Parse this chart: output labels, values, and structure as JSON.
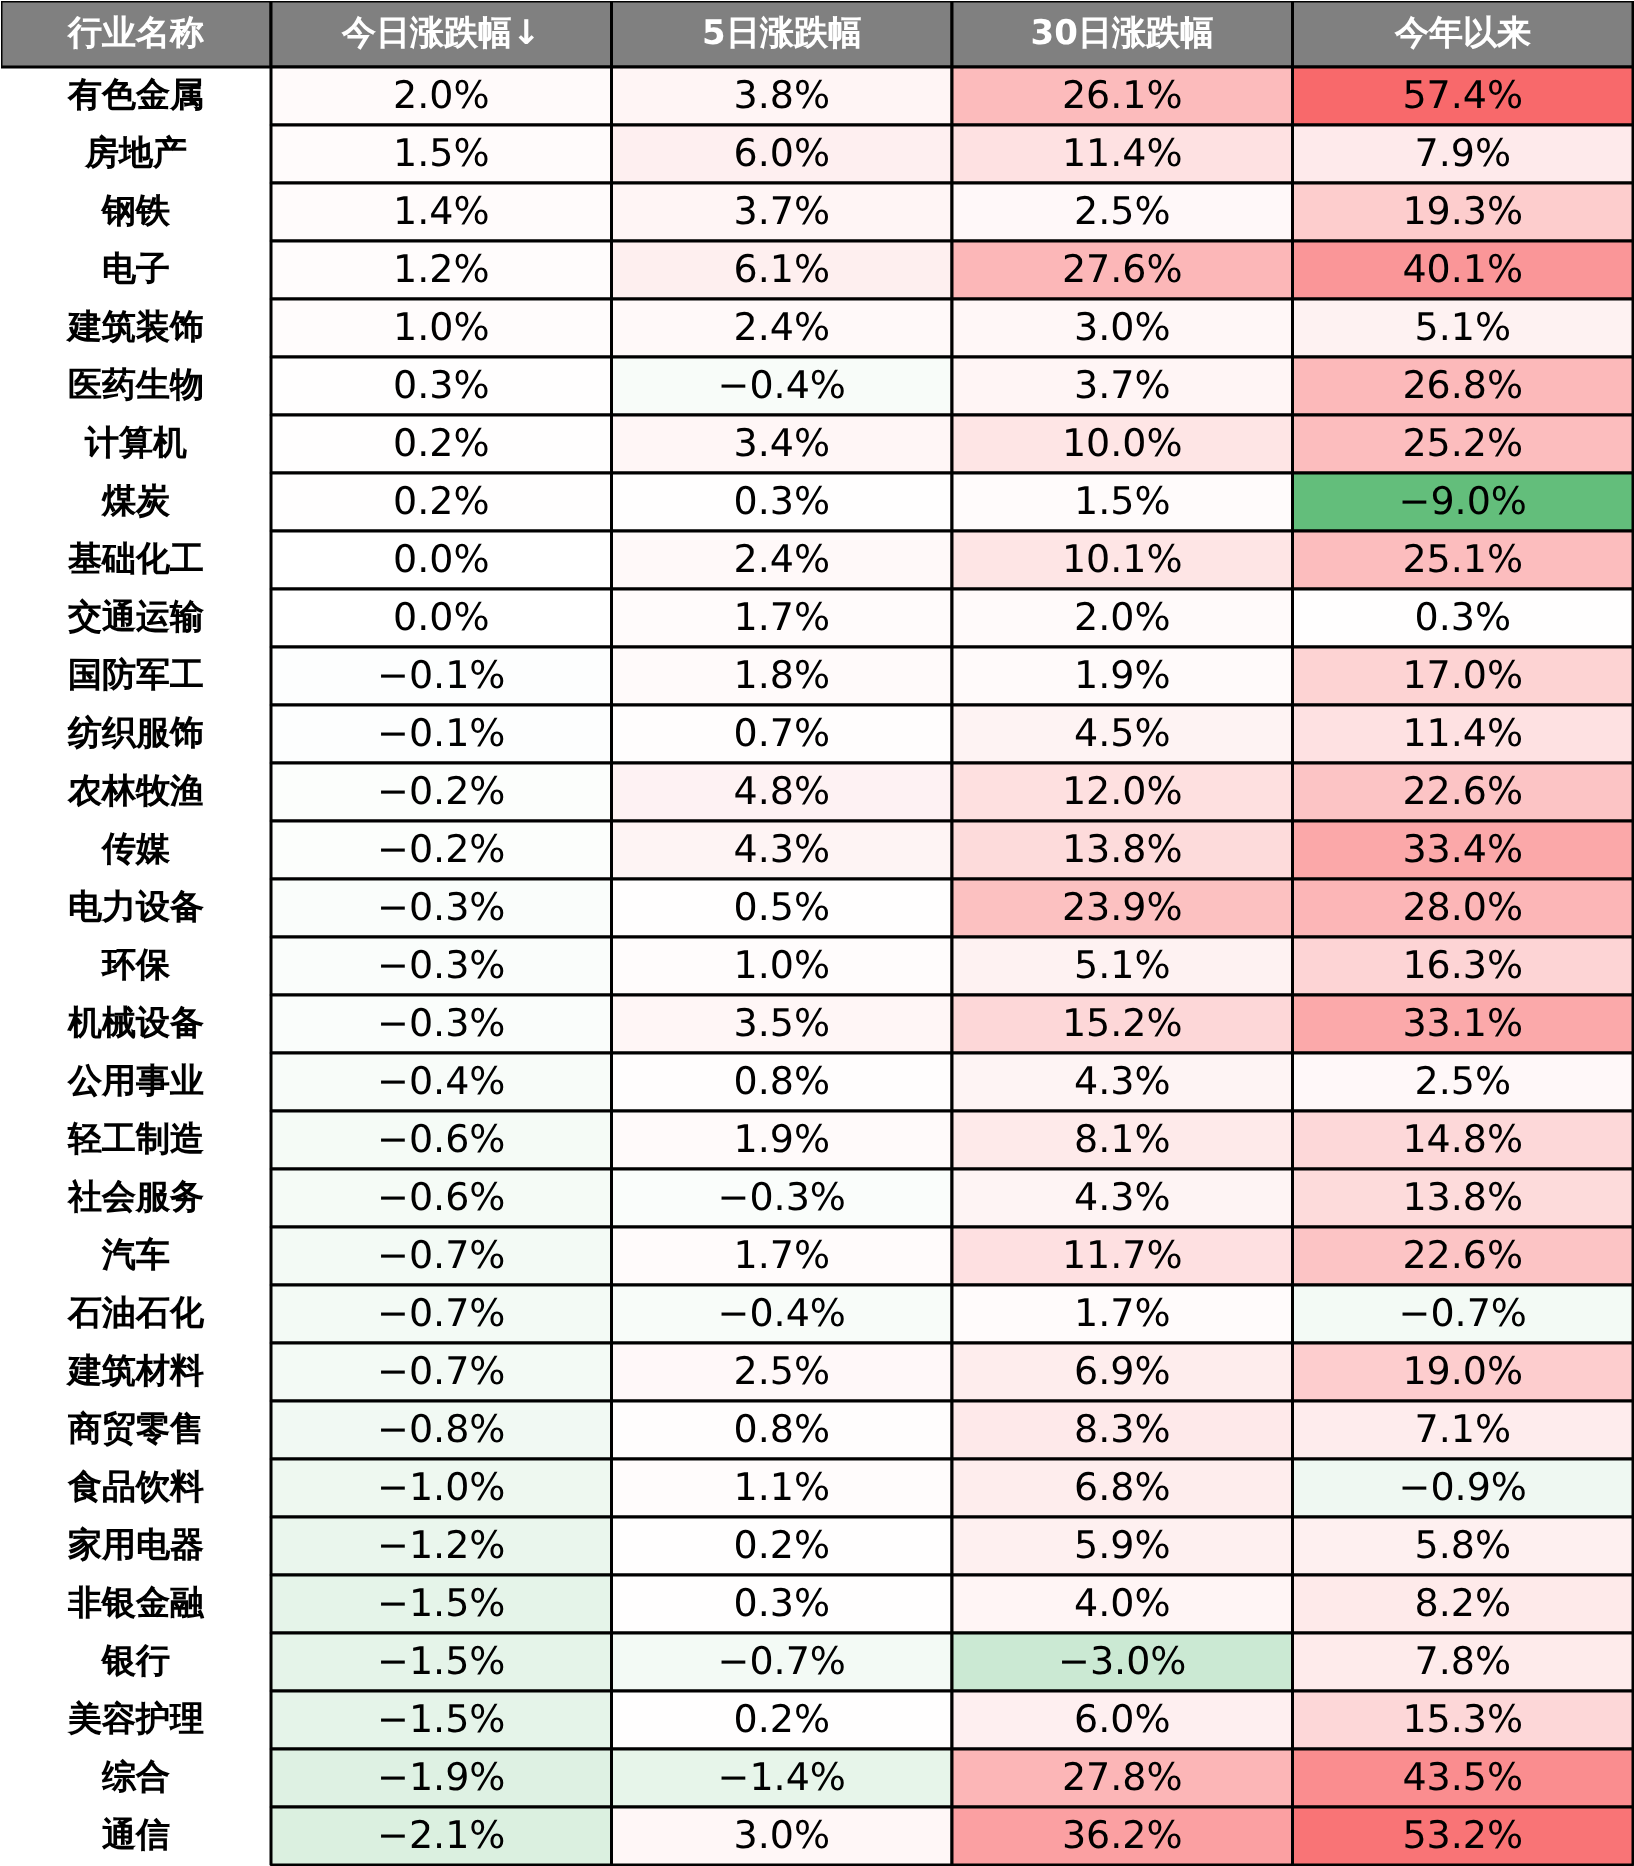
{
  "chart_data": {
    "type": "heatmap",
    "ylabel": "行业名称",
    "data_labels": true,
    "categories": [
      "今日涨跌幅↓",
      "5日涨跌幅",
      "30日涨跌幅",
      "今年以来"
    ],
    "y_categories": [
      "有色金属",
      "房地产",
      "钢铁",
      "电子",
      "建筑装饰",
      "医药生物",
      "计算机",
      "煤炭",
      "基础化工",
      "交通运输",
      "国防军工",
      "纺织服饰",
      "农林牧渔",
      "传媒",
      "电力设备",
      "环保",
      "机械设备",
      "公用事业",
      "轻工制造",
      "社会服务",
      "汽车",
      "石油石化",
      "建筑材料",
      "商贸零售",
      "食品饮料",
      "家用电器",
      "非银金融",
      "银行",
      "美容护理",
      "综合",
      "通信"
    ],
    "cells": [
      [
        2.0,
        3.8,
        26.1,
        57.4
      ],
      [
        1.5,
        6.0,
        11.4,
        7.9
      ],
      [
        1.4,
        3.7,
        2.5,
        19.3
      ],
      [
        1.2,
        6.1,
        27.6,
        40.1
      ],
      [
        1.0,
        2.4,
        3.0,
        5.1
      ],
      [
        0.3,
        -0.4,
        3.7,
        26.8
      ],
      [
        0.2,
        3.4,
        10.0,
        25.2
      ],
      [
        0.2,
        0.3,
        1.5,
        -9.0
      ],
      [
        0.0,
        2.4,
        10.1,
        25.1
      ],
      [
        0.0,
        1.7,
        2.0,
        0.3
      ],
      [
        -0.1,
        1.8,
        1.9,
        17.0
      ],
      [
        -0.1,
        0.7,
        4.5,
        11.4
      ],
      [
        -0.2,
        4.8,
        12.0,
        22.6
      ],
      [
        -0.2,
        4.3,
        13.8,
        33.4
      ],
      [
        -0.3,
        0.5,
        23.9,
        28.0
      ],
      [
        -0.3,
        1.0,
        5.1,
        16.3
      ],
      [
        -0.3,
        3.5,
        15.2,
        33.1
      ],
      [
        -0.4,
        0.8,
        4.3,
        2.5
      ],
      [
        -0.6,
        1.9,
        8.1,
        14.8
      ],
      [
        -0.6,
        -0.3,
        4.3,
        13.8
      ],
      [
        -0.7,
        1.7,
        11.7,
        22.6
      ],
      [
        -0.7,
        -0.4,
        1.7,
        -0.7
      ],
      [
        -0.7,
        2.5,
        6.9,
        19.0
      ],
      [
        -0.8,
        0.8,
        8.3,
        7.1
      ],
      [
        -1.0,
        1.1,
        6.8,
        -0.9
      ],
      [
        -1.2,
        0.2,
        5.9,
        5.8
      ],
      [
        -1.5,
        0.3,
        4.0,
        8.2
      ],
      [
        -1.5,
        -0.7,
        -3.0,
        7.8
      ],
      [
        -1.5,
        0.2,
        6.0,
        15.3
      ],
      [
        -1.9,
        -1.4,
        27.8,
        43.5
      ],
      [
        -2.1,
        3.0,
        36.2,
        53.2
      ]
    ],
    "cell_labels": [
      [
        "2.0%",
        "3.8%",
        "26.1%",
        "57.4%"
      ],
      [
        "1.5%",
        "6.0%",
        "11.4%",
        "7.9%"
      ],
      [
        "1.4%",
        "3.7%",
        "2.5%",
        "19.3%"
      ],
      [
        "1.2%",
        "6.1%",
        "27.6%",
        "40.1%"
      ],
      [
        "1.0%",
        "2.4%",
        "3.0%",
        "5.1%"
      ],
      [
        "0.3%",
        "−0.4%",
        "3.7%",
        "26.8%"
      ],
      [
        "0.2%",
        "3.4%",
        "10.0%",
        "25.2%"
      ],
      [
        "0.2%",
        "0.3%",
        "1.5%",
        "−9.0%"
      ],
      [
        "0.0%",
        "2.4%",
        "10.1%",
        "25.1%"
      ],
      [
        "0.0%",
        "1.7%",
        "2.0%",
        "0.3%"
      ],
      [
        "−0.1%",
        "1.8%",
        "1.9%",
        "17.0%"
      ],
      [
        "−0.1%",
        "0.7%",
        "4.5%",
        "11.4%"
      ],
      [
        "−0.2%",
        "4.8%",
        "12.0%",
        "22.6%"
      ],
      [
        "−0.2%",
        "4.3%",
        "13.8%",
        "33.4%"
      ],
      [
        "−0.3%",
        "0.5%",
        "23.9%",
        "28.0%"
      ],
      [
        "−0.3%",
        "1.0%",
        "5.1%",
        "16.3%"
      ],
      [
        "−0.3%",
        "3.5%",
        "15.2%",
        "33.1%"
      ],
      [
        "−0.4%",
        "0.8%",
        "4.3%",
        "2.5%"
      ],
      [
        "−0.6%",
        "1.9%",
        "8.1%",
        "14.8%"
      ],
      [
        "−0.6%",
        "−0.3%",
        "4.3%",
        "13.8%"
      ],
      [
        "−0.7%",
        "1.7%",
        "11.7%",
        "22.6%"
      ],
      [
        "−0.7%",
        "−0.4%",
        "1.7%",
        "−0.7%"
      ],
      [
        "−0.7%",
        "2.5%",
        "6.9%",
        "19.0%"
      ],
      [
        "−0.8%",
        "0.8%",
        "8.3%",
        "7.1%"
      ],
      [
        "−1.0%",
        "1.1%",
        "6.8%",
        "−0.9%"
      ],
      [
        "−1.2%",
        "0.2%",
        "5.9%",
        "5.8%"
      ],
      [
        "−1.5%",
        "0.3%",
        "4.0%",
        "8.2%"
      ],
      [
        "−1.5%",
        "−0.7%",
        "−3.0%",
        "7.8%"
      ],
      [
        "−1.5%",
        "0.2%",
        "6.0%",
        "15.3%"
      ],
      [
        "−1.9%",
        "−1.4%",
        "27.8%",
        "43.5%"
      ],
      [
        "−2.1%",
        "3.0%",
        "36.2%",
        "53.2%"
      ]
    ]
  }
}
